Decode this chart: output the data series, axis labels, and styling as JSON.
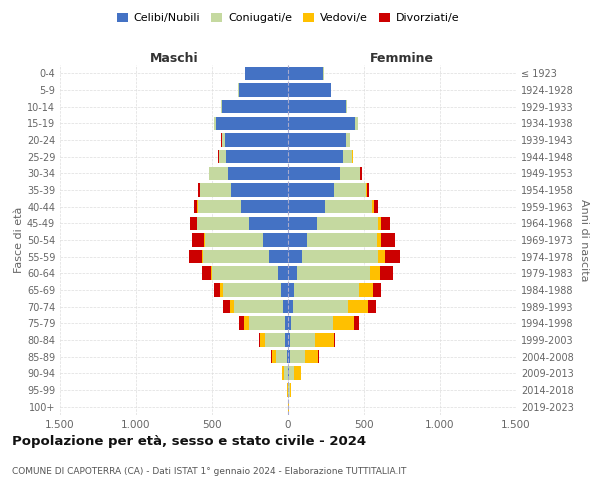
{
  "age_groups": [
    "0-4",
    "5-9",
    "10-14",
    "15-19",
    "20-24",
    "25-29",
    "30-34",
    "35-39",
    "40-44",
    "45-49",
    "50-54",
    "55-59",
    "60-64",
    "65-69",
    "70-74",
    "75-79",
    "80-84",
    "85-89",
    "90-94",
    "95-99",
    "100+"
  ],
  "birth_years": [
    "2019-2023",
    "2014-2018",
    "2009-2013",
    "2004-2008",
    "1999-2003",
    "1994-1998",
    "1989-1993",
    "1984-1988",
    "1979-1983",
    "1974-1978",
    "1969-1973",
    "1964-1968",
    "1959-1963",
    "1954-1958",
    "1949-1953",
    "1944-1948",
    "1939-1943",
    "1934-1938",
    "1929-1933",
    "1924-1928",
    "≤ 1923"
  ],
  "male_celibe": [
    285,
    325,
    435,
    475,
    415,
    405,
    395,
    375,
    310,
    255,
    165,
    125,
    68,
    48,
    32,
    22,
    18,
    8,
    3,
    0,
    0
  ],
  "male_coniugato": [
    1,
    3,
    6,
    12,
    22,
    52,
    122,
    202,
    285,
    342,
    382,
    432,
    432,
    382,
    322,
    232,
    132,
    72,
    22,
    2,
    0
  ],
  "male_vedovo": [
    0,
    0,
    0,
    0,
    0,
    0,
    0,
    1,
    2,
    3,
    5,
    6,
    9,
    18,
    28,
    38,
    32,
    28,
    12,
    2,
    0
  ],
  "male_divorziato": [
    0,
    0,
    0,
    0,
    2,
    3,
    6,
    12,
    22,
    42,
    78,
    88,
    58,
    38,
    48,
    32,
    9,
    6,
    2,
    0,
    0
  ],
  "female_nubile": [
    232,
    282,
    382,
    442,
    382,
    362,
    342,
    302,
    242,
    192,
    122,
    92,
    58,
    42,
    32,
    22,
    16,
    12,
    6,
    2,
    0
  ],
  "female_coniugata": [
    2,
    4,
    6,
    16,
    26,
    62,
    132,
    212,
    312,
    402,
    462,
    502,
    482,
    422,
    362,
    272,
    162,
    102,
    36,
    8,
    2
  ],
  "female_vedova": [
    0,
    0,
    0,
    0,
    0,
    1,
    2,
    5,
    9,
    16,
    26,
    42,
    62,
    92,
    132,
    142,
    122,
    82,
    42,
    10,
    2
  ],
  "female_divorziata": [
    0,
    0,
    0,
    1,
    2,
    4,
    9,
    16,
    26,
    62,
    92,
    98,
    92,
    58,
    52,
    32,
    12,
    6,
    2,
    0,
    0
  ],
  "colors": {
    "celibe": "#4472c4",
    "coniugato": "#c5d9a0",
    "vedovo": "#ffc000",
    "divorziato": "#cc0000"
  },
  "xlim": 1500,
  "title": "Popolazione per età, sesso e stato civile - 2024",
  "subtitle": "COMUNE DI CAPOTERRA (CA) - Dati ISTAT 1° gennaio 2024 - Elaborazione TUTTITALIA.IT",
  "label_maschi": "Maschi",
  "label_femmine": "Femmine",
  "ylabel_left": "Fasce di età",
  "ylabel_right": "Anni di nascita",
  "legend_labels": [
    "Celibi/Nubili",
    "Coniugati/e",
    "Vedovi/e",
    "Divorziati/e"
  ],
  "xtick_labels": [
    "1.500",
    "1.000",
    "500",
    "0",
    "500",
    "1.000",
    "1.500"
  ],
  "xtick_values": [
    -1500,
    -1000,
    -500,
    0,
    500,
    1000,
    1500
  ]
}
